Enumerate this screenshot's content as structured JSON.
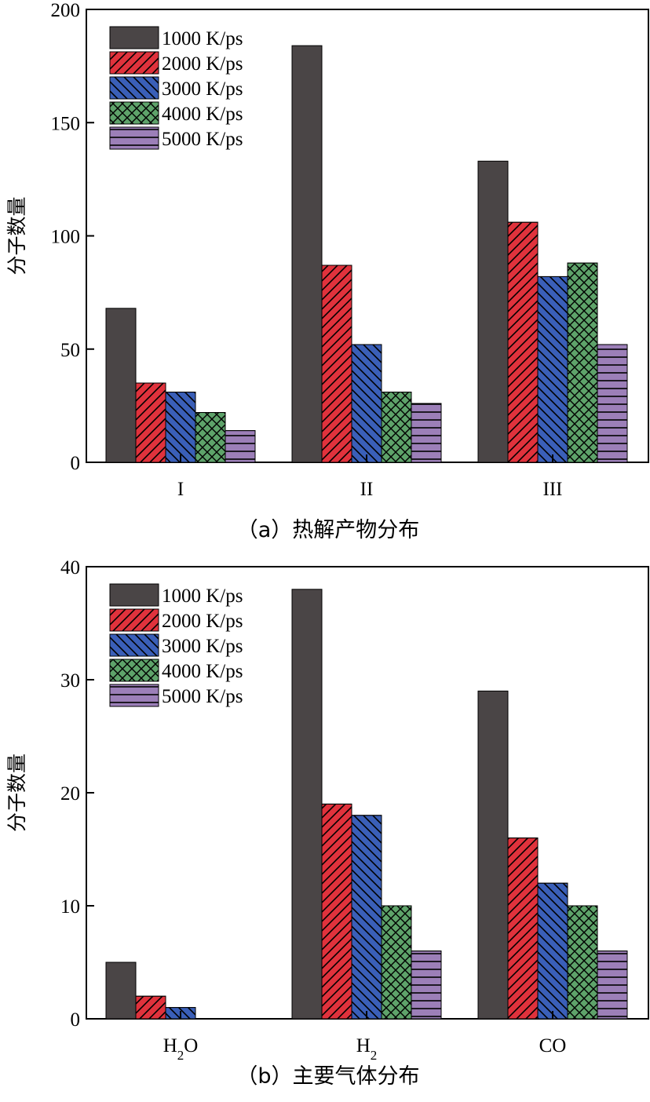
{
  "chart_data": [
    {
      "type": "bar",
      "caption": "（a）热解产物分布",
      "ylabel": "分子数量",
      "ylim": [
        0,
        200
      ],
      "yticks": [
        0,
        50,
        100,
        150,
        200
      ],
      "categories": [
        "I",
        "II",
        "III"
      ],
      "series": [
        {
          "name": "1000 K/ps",
          "values": [
            68,
            184,
            133
          ]
        },
        {
          "name": "2000 K/ps",
          "values": [
            35,
            87,
            106
          ]
        },
        {
          "name": "3000 K/ps",
          "values": [
            31,
            52,
            82
          ]
        },
        {
          "name": "4000 K/ps",
          "values": [
            22,
            31,
            88
          ]
        },
        {
          "name": "5000 K/ps",
          "values": [
            14,
            26,
            52
          ]
        }
      ],
      "legend_position": "top-left"
    },
    {
      "type": "bar",
      "caption": "（b）主要气体分布",
      "ylabel": "分子数量",
      "ylim": [
        0,
        40
      ],
      "yticks": [
        0,
        10,
        20,
        30,
        40
      ],
      "categories": [
        "H2O",
        "H2",
        "CO"
      ],
      "series": [
        {
          "name": "1000 K/ps",
          "values": [
            5,
            38,
            29
          ]
        },
        {
          "name": "2000 K/ps",
          "values": [
            2,
            19,
            16
          ]
        },
        {
          "name": "3000 K/ps",
          "values": [
            1,
            18,
            12
          ]
        },
        {
          "name": "4000 K/ps",
          "values": [
            0,
            10,
            10
          ]
        },
        {
          "name": "5000 K/ps",
          "values": [
            0,
            6,
            6
          ]
        }
      ],
      "legend_position": "top-left"
    }
  ],
  "series_styles": [
    {
      "color": "#4a4546",
      "pattern": "solid"
    },
    {
      "color": "#e0323c",
      "pattern": "diag-up"
    },
    {
      "color": "#3a5fb8",
      "pattern": "diag-down"
    },
    {
      "color": "#5ea36a",
      "pattern": "cross"
    },
    {
      "color": "#9c7fb8",
      "pattern": "horizontal"
    }
  ]
}
